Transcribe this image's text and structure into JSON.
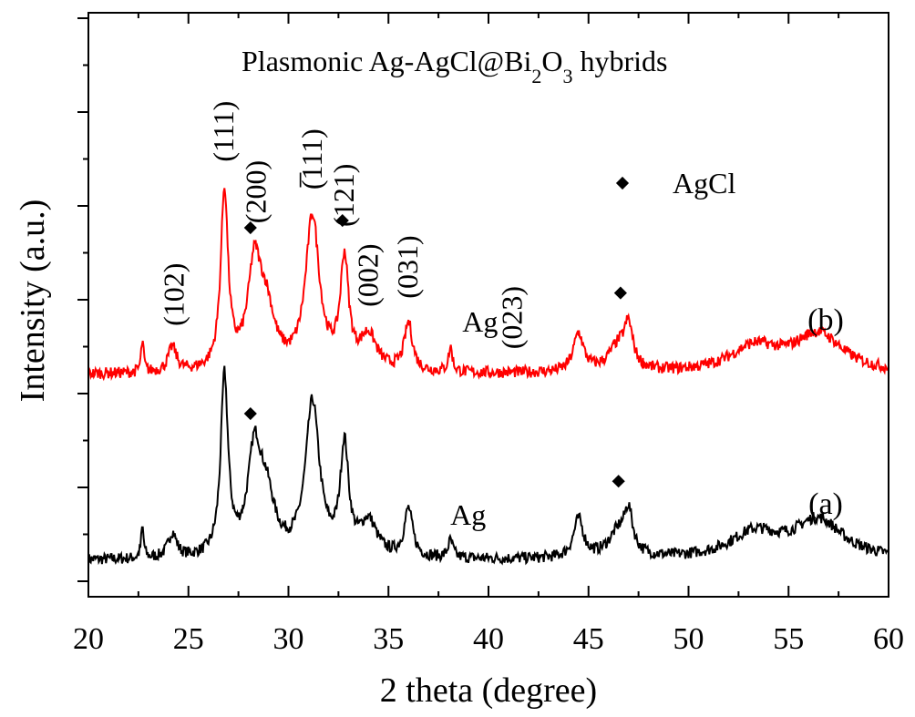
{
  "chart_data": {
    "type": "line",
    "title": "Plasmonic Ag-AgCl@Bi2O3 hybrids",
    "title_parts": {
      "main": "Plasmonic Ag-AgCl@Bi",
      "sub1": "2",
      "mid": "O",
      "sub2": "3",
      "end": " hybrids"
    },
    "xlabel": "2 theta (degree)",
    "ylabel": "Intensity (a.u.)",
    "xlim": [
      20,
      60
    ],
    "xticks": [
      "20",
      "25",
      "30",
      "35",
      "40",
      "45",
      "50",
      "55",
      "60"
    ],
    "y_tick_labels_shown": false,
    "grid": false,
    "series": [
      {
        "name": "(a)",
        "color": "#000000",
        "baseline": 0.1,
        "peaks": [
          [
            22.7,
            0.16,
            0.08
          ],
          [
            24.2,
            0.13,
            0.25
          ],
          [
            26.8,
            0.93,
            0.22
          ],
          [
            28.3,
            0.52,
            0.4
          ],
          [
            28.9,
            0.28,
            0.5
          ],
          [
            31.2,
            0.8,
            0.42
          ],
          [
            32.8,
            0.56,
            0.25
          ],
          [
            34.0,
            0.18,
            0.5
          ],
          [
            36.0,
            0.25,
            0.25
          ],
          [
            38.1,
            0.09,
            0.15
          ],
          [
            44.5,
            0.2,
            0.3
          ],
          [
            46.5,
            0.13,
            0.6
          ],
          [
            47.0,
            0.2,
            0.25
          ],
          [
            53.3,
            0.13,
            1.5
          ],
          [
            56.5,
            0.2,
            1.5
          ]
        ]
      },
      {
        "name": "(b)",
        "color": "#ff0000",
        "baseline": 0.1,
        "peaks": [
          [
            22.7,
            0.16,
            0.08
          ],
          [
            24.2,
            0.13,
            0.25
          ],
          [
            26.8,
            0.93,
            0.22
          ],
          [
            28.3,
            0.52,
            0.4
          ],
          [
            28.9,
            0.28,
            0.5
          ],
          [
            31.2,
            0.8,
            0.42
          ],
          [
            32.8,
            0.56,
            0.25
          ],
          [
            34.0,
            0.18,
            0.5
          ],
          [
            36.0,
            0.25,
            0.25
          ],
          [
            38.1,
            0.13,
            0.12
          ],
          [
            44.5,
            0.2,
            0.3
          ],
          [
            46.5,
            0.13,
            0.6
          ],
          [
            47.0,
            0.2,
            0.25
          ],
          [
            53.3,
            0.13,
            1.5
          ],
          [
            56.5,
            0.2,
            1.5
          ]
        ]
      }
    ],
    "peak_labels": [
      {
        "text": "(102)",
        "x": 24.3,
        "series": "(b)"
      },
      {
        "text": "(111)",
        "x": 26.8,
        "series": "(b)"
      },
      {
        "text": "(200)",
        "x": 28.4,
        "series": "(b)"
      },
      {
        "text": "(̅111)",
        "x": 31.2,
        "series": "(b)"
      },
      {
        "text": "(121)",
        "x": 32.8,
        "series": "(b)"
      },
      {
        "text": "(002)",
        "x": 34.0,
        "series": "(b)"
      },
      {
        "text": "(031)",
        "x": 36.0,
        "series": "(b)"
      },
      {
        "text": "(023)",
        "x": 41.2,
        "series": "(b)"
      }
    ],
    "agcl_markers": [
      {
        "x": 28.1,
        "series": "(b)"
      },
      {
        "x": 32.7,
        "series": "(b)"
      },
      {
        "x": 46.6,
        "series": "(b)"
      },
      {
        "x": 28.1,
        "series": "(a)"
      },
      {
        "x": 46.5,
        "series": "(a)"
      }
    ],
    "annotations": [
      {
        "text": "Ag",
        "x": 38.6,
        "series": "(b)"
      },
      {
        "text": "Ag",
        "x": 38.0,
        "series": "(a)"
      }
    ],
    "legend": {
      "marker": "diamond",
      "label": "AgCl",
      "placement": "top-right"
    }
  }
}
